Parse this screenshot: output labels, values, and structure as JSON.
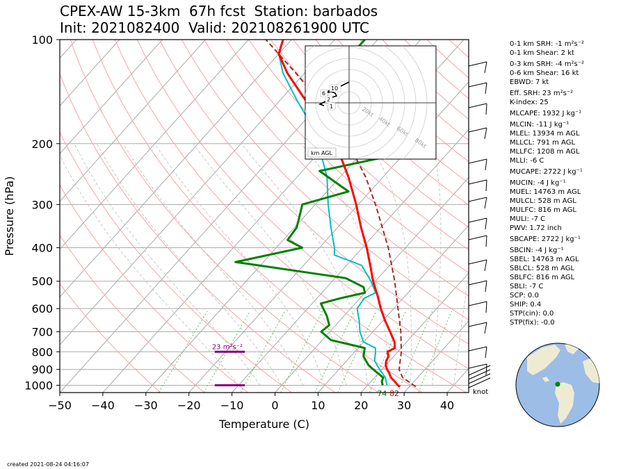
{
  "title": {
    "line1": "CPEX-AW 15-3km  67h fcst  Station: barbados",
    "line2": "Init: 2021082400  Valid: 202108261900 UTC"
  },
  "created": "created 2021-08-24 04:16:07",
  "colors": {
    "temperature": "#ff0000",
    "dewpoint": "#008000",
    "wetbulb": "#00bfbf",
    "parcel": "#a52a2a",
    "isobar": "#aaaaaa",
    "isotherm": "#aaaaaa",
    "dry_adiabat": "#f4a6a6",
    "moist_adiabat": "#bbbbbb",
    "mixing_ratio": "#66bb66",
    "srh_bar": "#800080"
  },
  "chart_data": {
    "type": "skew-t",
    "xlabel": "Temperature (C)",
    "ylabel": "Pressure (hPa)",
    "xlim": [
      -50,
      45
    ],
    "ylim": [
      1050,
      100
    ],
    "x_ticks": [
      -50,
      -40,
      -30,
      -20,
      -10,
      0,
      10,
      20,
      30,
      40
    ],
    "y_ticks": [
      100,
      200,
      300,
      400,
      500,
      600,
      700,
      800,
      900,
      1000
    ],
    "log_pressure": true,
    "grid": true,
    "temperature_profile": [
      {
        "p": 1010,
        "t": 27.8
      },
      {
        "p": 1000,
        "t": 27.0
      },
      {
        "p": 975,
        "t": 25.5
      },
      {
        "p": 950,
        "t": 23.8
      },
      {
        "p": 925,
        "t": 22.6
      },
      {
        "p": 900,
        "t": 21.2
      },
      {
        "p": 875,
        "t": 20.0
      },
      {
        "p": 850,
        "t": 19.2
      },
      {
        "p": 825,
        "t": 18.8
      },
      {
        "p": 800,
        "t": 17.6
      },
      {
        "p": 780,
        "t": 18.5
      },
      {
        "p": 750,
        "t": 17.2
      },
      {
        "p": 700,
        "t": 14.0
      },
      {
        "p": 650,
        "t": 10.5
      },
      {
        "p": 600,
        "t": 7.0
      },
      {
        "p": 550,
        "t": 3.5
      },
      {
        "p": 500,
        "t": -0.5
      },
      {
        "p": 450,
        "t": -4.5
      },
      {
        "p": 400,
        "t": -9.0
      },
      {
        "p": 350,
        "t": -14.5
      },
      {
        "p": 300,
        "t": -20.5
      },
      {
        "p": 250,
        "t": -28.0
      },
      {
        "p": 200,
        "t": -38.0
      },
      {
        "p": 175,
        "t": -45.0
      },
      {
        "p": 150,
        "t": -54.0
      },
      {
        "p": 125,
        "t": -64.0
      },
      {
        "p": 110,
        "t": -70.0
      },
      {
        "p": 100,
        "t": -72.0
      }
    ],
    "dewpoint_profile": [
      {
        "p": 1000,
        "td": 23.5
      },
      {
        "p": 975,
        "td": 22.5
      },
      {
        "p": 950,
        "td": 22.0
      },
      {
        "p": 925,
        "td": 20.0
      },
      {
        "p": 900,
        "td": 18.0
      },
      {
        "p": 875,
        "td": 16.0
      },
      {
        "p": 850,
        "td": 14.5
      },
      {
        "p": 825,
        "td": 13.0
      },
      {
        "p": 780,
        "td": 11.5
      },
      {
        "p": 740,
        "td": 2.0
      },
      {
        "p": 700,
        "td": -2.0
      },
      {
        "p": 670,
        "td": -1.5
      },
      {
        "p": 630,
        "td": -4.0
      },
      {
        "p": 580,
        "td": -8.0
      },
      {
        "p": 560,
        "td": -4.5
      },
      {
        "p": 540,
        "td": 0.0
      },
      {
        "p": 520,
        "td": -1.5
      },
      {
        "p": 490,
        "td": -7.5
      },
      {
        "p": 440,
        "td": -36.5
      },
      {
        "p": 400,
        "td": -24.0
      },
      {
        "p": 380,
        "td": -29.0
      },
      {
        "p": 350,
        "td": -29.5
      },
      {
        "p": 320,
        "td": -31.5
      },
      {
        "p": 300,
        "td": -33.0
      },
      {
        "p": 275,
        "td": -25.0
      },
      {
        "p": 240,
        "td": -36.0
      },
      {
        "p": 220,
        "td": -24.5
      },
      {
        "p": 200,
        "td": -27.0
      },
      {
        "p": 175,
        "td": -40.0
      },
      {
        "p": 150,
        "td": -44.5
      },
      {
        "p": 125,
        "td": -50.0
      },
      {
        "p": 110,
        "td": -53.0
      },
      {
        "p": 100,
        "td": -53.0
      }
    ],
    "wetbulb_profile": [
      {
        "p": 1000,
        "tw": 24.5
      },
      {
        "p": 975,
        "tw": 23.5
      },
      {
        "p": 950,
        "tw": 22.5
      },
      {
        "p": 925,
        "tw": 21.0
      },
      {
        "p": 900,
        "tw": 19.5
      },
      {
        "p": 875,
        "tw": 18.0
      },
      {
        "p": 850,
        "tw": 16.5
      },
      {
        "p": 800,
        "tw": 14.8
      },
      {
        "p": 780,
        "tw": 14.0
      },
      {
        "p": 750,
        "tw": 10.0
      },
      {
        "p": 700,
        "tw": 7.0
      },
      {
        "p": 650,
        "tw": 4.5
      },
      {
        "p": 600,
        "tw": 1.5
      },
      {
        "p": 560,
        "tw": 1.0
      },
      {
        "p": 540,
        "tw": 2.5
      },
      {
        "p": 500,
        "tw": -1.0
      },
      {
        "p": 450,
        "tw": -6.5
      },
      {
        "p": 420,
        "tw": -15.0
      },
      {
        "p": 400,
        "tw": -16.5
      },
      {
        "p": 350,
        "tw": -21.5
      },
      {
        "p": 300,
        "tw": -27.0
      },
      {
        "p": 250,
        "tw": -33.0
      },
      {
        "p": 200,
        "tw": -42.0
      },
      {
        "p": 175,
        "tw": -48.0
      },
      {
        "p": 150,
        "tw": -56.0
      },
      {
        "p": 125,
        "tw": -65.0
      },
      {
        "p": 110,
        "tw": -70.0
      },
      {
        "p": 100,
        "tw": -72.0
      }
    ],
    "parcel_profile": [
      {
        "p": 1010,
        "t": 31.5
      },
      {
        "p": 950,
        "t": 26.5
      },
      {
        "p": 900,
        "t": 24.0
      },
      {
        "p": 800,
        "t": 20.8
      },
      {
        "p": 700,
        "t": 16.5
      },
      {
        "p": 600,
        "t": 11.0
      },
      {
        "p": 500,
        "t": 4.5
      },
      {
        "p": 400,
        "t": -4.0
      },
      {
        "p": 300,
        "t": -16.0
      },
      {
        "p": 250,
        "t": -24.0
      },
      {
        "p": 200,
        "t": -35.0
      },
      {
        "p": 150,
        "t": -51.0
      },
      {
        "p": 125,
        "t": -62.0
      },
      {
        "p": 100,
        "t": -76.0
      }
    ],
    "surface_labels": {
      "dewpoint": "74",
      "temperature": "82"
    },
    "srh_annotation": {
      "text": "23 m²s⁻²",
      "p_top": 800,
      "p_bottom": 1000,
      "t_left": -14,
      "t_right": -7
    },
    "hodograph": {
      "rings_kt": [
        "20kt",
        "40kt",
        "60kt",
        "80kt"
      ],
      "height_labels": [
        "10",
        "6",
        "2",
        "1"
      ],
      "box_label": "km AGL"
    },
    "wind_units": "knot"
  },
  "indices": [
    {
      "text": "0-1 km SRH: -1 m²s⁻²"
    },
    {
      "text": "0-1 km Shear: 2 kt"
    },
    {
      "text": "0-3 km SRH: -4 m²s⁻²",
      "gap": true
    },
    {
      "text": "0-6 km Shear: 16 kt"
    },
    {
      "text": "EBWD: 7 kt"
    },
    {
      "text": "Eff. SRH: 23 m²s⁻²",
      "gap": true
    },
    {
      "text": "K-index: 25"
    },
    {
      "text": "MLCAPE: 1932 J kg⁻¹",
      "gap": true
    },
    {
      "text": "MLCIN: -11 J kg⁻¹",
      "gap": true
    },
    {
      "text": "MLEL: 13934 m AGL"
    },
    {
      "text": "MLLCL: 791 m AGL"
    },
    {
      "text": "MLLFC: 1208 m AGL"
    },
    {
      "text": "MLLI: -6 C"
    },
    {
      "text": "MUCAPE: 2722 J kg⁻¹",
      "gap": true
    },
    {
      "text": "MUCIN: -4 J kg⁻¹",
      "gap": true
    },
    {
      "text": "MUEL: 14763 m AGL"
    },
    {
      "text": "MULCL: 528 m AGL"
    },
    {
      "text": "MULFC: 816 m AGL"
    },
    {
      "text": "MULI: -7 C"
    },
    {
      "text": "PWV: 1.72 inch"
    },
    {
      "text": "SBCAPE: 2722 J kg⁻¹",
      "gap": true
    },
    {
      "text": "SBCIN: -4 J kg⁻¹",
      "gap": true
    },
    {
      "text": "SBEL: 14763 m AGL"
    },
    {
      "text": "SBLCL: 528 m AGL"
    },
    {
      "text": "SBLFC: 816 m AGL"
    },
    {
      "text": "SBLI: -7 C"
    },
    {
      "text": "SCP: 0.0"
    },
    {
      "text": "SHIP: 0.4"
    },
    {
      "text": "STP(cin): 0.0"
    },
    {
      "text": "STP(fix): -0.0"
    }
  ],
  "globe": {
    "land_color": "#efebd3",
    "ocean_color": "#9bbde6",
    "marker_color": "#008000"
  }
}
